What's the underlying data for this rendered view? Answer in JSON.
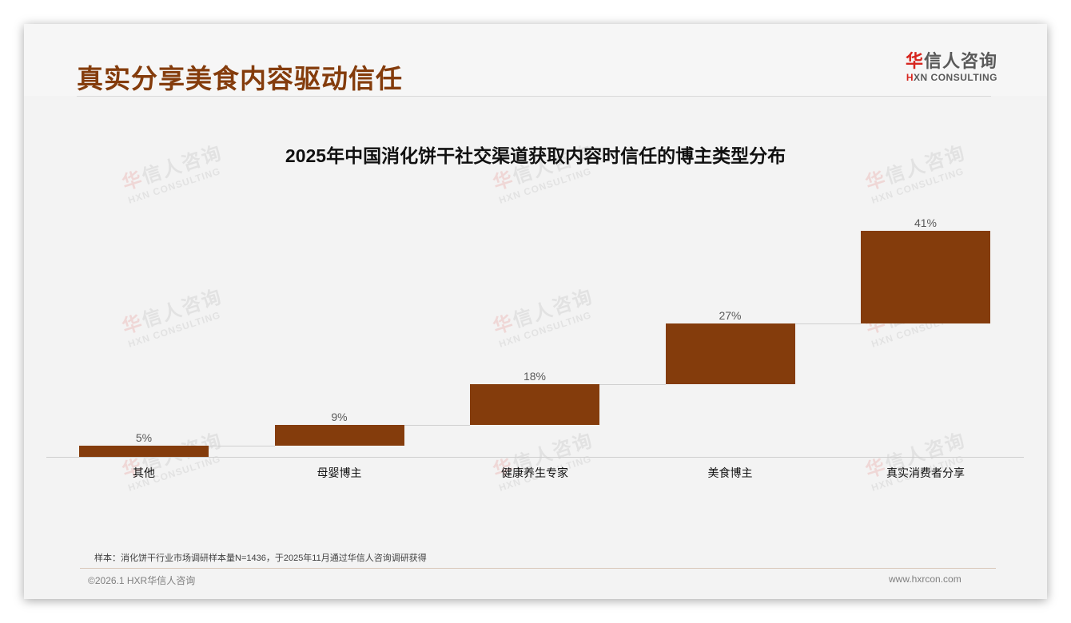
{
  "header": {
    "title": "真实分享美食内容驱动信任",
    "logo": {
      "cn_first": "华",
      "cn_rest": "信人咨询",
      "en_first": "H",
      "en_rest": "XN CONSULTING"
    }
  },
  "watermark": {
    "cn_first": "华",
    "cn_rest": "信人咨询",
    "en": "HXN CONSULTING"
  },
  "chart_data": {
    "type": "bar",
    "subtype": "waterfall",
    "title": "2025年中国消化饼干社交渠道获取内容时信任的博主类型分布",
    "categories": [
      "其他",
      "母婴博主",
      "健康养生专家",
      "美食博主",
      "真实消费者分享"
    ],
    "values": [
      5,
      9,
      18,
      27,
      41
    ],
    "labels": [
      "5%",
      "9%",
      "18%",
      "27%",
      "41%"
    ],
    "cumulative_start": [
      0,
      5,
      14,
      32,
      59
    ],
    "cumulative_end": [
      5,
      14,
      32,
      59,
      100
    ],
    "xlabel": "",
    "ylabel": "",
    "ylim": [
      0,
      100
    ],
    "grid": false,
    "legend": "none",
    "bar_color": "#843c0c"
  },
  "footer": {
    "note": "样本：消化饼干行业市场调研样本量N=1436，于2025年11月通过华信人咨询调研获得",
    "copyright": "©2026.1 HXR华信人咨询",
    "website": "www.hxrcon.com"
  }
}
